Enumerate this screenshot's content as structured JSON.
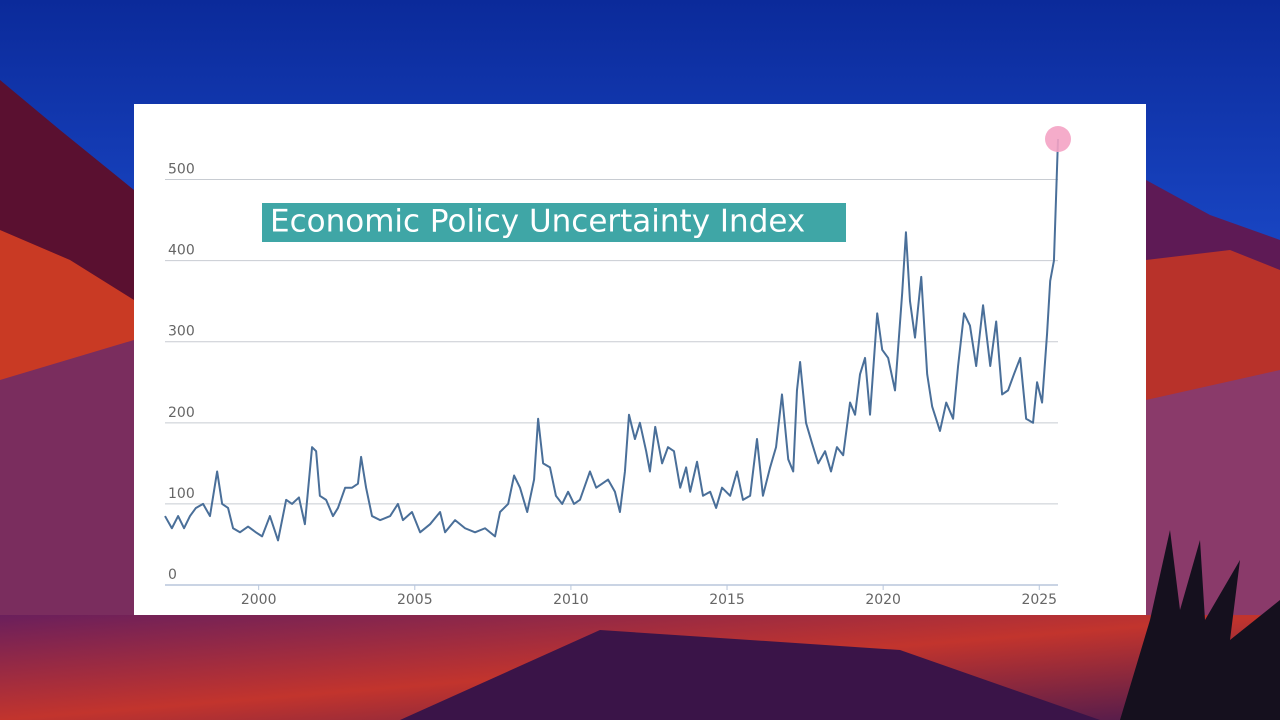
{
  "chart_data": {
    "type": "line",
    "title": "Economic Policy Uncertainty Index",
    "x": [
      1997.0,
      1997.22,
      1997.42,
      1997.61,
      1997.8,
      1997.99,
      1998.22,
      1998.44,
      1998.67,
      1998.83,
      1999.02,
      1999.18,
      1999.4,
      1999.66,
      1999.91,
      2000.11,
      2000.36,
      2000.62,
      2000.88,
      2001.07,
      2001.29,
      2001.48,
      2001.71,
      2001.84,
      2001.96,
      2002.16,
      2002.38,
      2002.54,
      2002.77,
      2002.99,
      2003.18,
      2003.28,
      2003.44,
      2003.63,
      2003.89,
      2004.21,
      2004.46,
      2004.62,
      2004.91,
      2005.17,
      2005.49,
      2005.81,
      2005.97,
      2006.29,
      2006.61,
      2006.93,
      2007.25,
      2007.57,
      2007.73,
      2007.99,
      2008.18,
      2008.37,
      2008.6,
      2008.82,
      2008.95,
      2009.11,
      2009.33,
      2009.52,
      2009.72,
      2009.91,
      2010.1,
      2010.29,
      2010.61,
      2010.81,
      2011.0,
      2011.19,
      2011.41,
      2011.57,
      2011.73,
      2011.86,
      2012.05,
      2012.21,
      2012.41,
      2012.53,
      2012.7,
      2012.92,
      2013.11,
      2013.3,
      2013.5,
      2013.69,
      2013.82,
      2014.04,
      2014.23,
      2014.46,
      2014.65,
      2014.84,
      2015.1,
      2015.32,
      2015.51,
      2015.74,
      2015.96,
      2016.15,
      2016.38,
      2016.57,
      2016.76,
      2016.96,
      2017.12,
      2017.24,
      2017.34,
      2017.53,
      2017.72,
      2017.92,
      2018.14,
      2018.33,
      2018.52,
      2018.72,
      2018.94,
      2019.1,
      2019.26,
      2019.42,
      2019.58,
      2019.81,
      2019.97,
      2020.16,
      2020.38,
      2020.61,
      2020.73,
      2020.86,
      2021.02,
      2021.22,
      2021.41,
      2021.57,
      2021.82,
      2022.02,
      2022.24,
      2022.4,
      2022.59,
      2022.78,
      2022.98,
      2023.2,
      2023.43,
      2023.62,
      2023.81,
      2024.0,
      2024.19,
      2024.39,
      2024.58,
      2024.8,
      2024.93,
      2025.09,
      2025.25,
      2025.35,
      2025.47,
      2025.6
    ],
    "series": [
      {
        "color": "#4a6f99",
        "values": [
          85,
          70,
          85,
          70,
          85,
          95,
          100,
          85,
          140,
          100,
          95,
          70,
          65,
          72,
          65,
          60,
          85,
          55,
          105,
          100,
          108,
          75,
          170,
          165,
          110,
          105,
          85,
          95,
          120,
          120,
          125,
          158,
          120,
          85,
          80,
          85,
          100,
          80,
          90,
          65,
          75,
          90,
          65,
          80,
          70,
          65,
          70,
          60,
          90,
          100,
          135,
          120,
          90,
          130,
          205,
          150,
          145,
          110,
          100,
          115,
          100,
          105,
          140,
          120,
          125,
          130,
          115,
          90,
          140,
          210,
          180,
          200,
          165,
          140,
          195,
          150,
          170,
          165,
          120,
          145,
          115,
          152,
          110,
          115,
          95,
          120,
          110,
          140,
          105,
          110,
          180,
          110,
          145,
          170,
          235,
          155,
          140,
          240,
          275,
          200,
          175,
          150,
          165,
          140,
          170,
          160,
          225,
          210,
          260,
          280,
          210,
          335,
          290,
          280,
          240,
          360,
          435,
          350,
          305,
          380,
          260,
          220,
          190,
          225,
          205,
          270,
          335,
          320,
          270,
          345,
          270,
          325,
          235,
          240,
          260,
          280,
          205,
          200,
          250,
          225,
          310,
          375,
          400,
          550
        ]
      }
    ],
    "highlight_color": "#f4a3c4",
    "xlim": [
      1997,
      2025.6
    ],
    "xticks": [
      2000,
      2005,
      2010,
      2015,
      2020,
      2025
    ],
    "ylim": [
      0,
      550
    ],
    "yticks": [
      0,
      100,
      200,
      300,
      400,
      500
    ],
    "grid": true
  }
}
